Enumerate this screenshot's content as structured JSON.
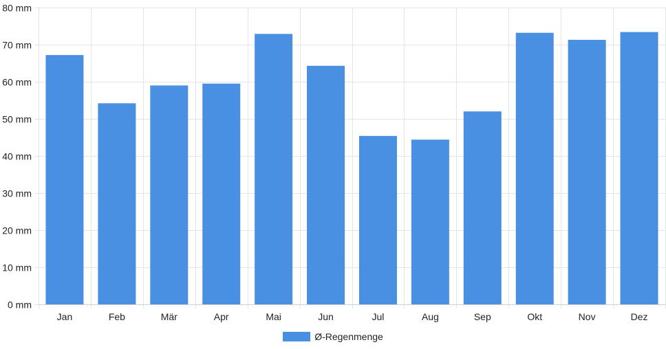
{
  "chart_data": {
    "type": "bar",
    "categories": [
      "Jan",
      "Feb",
      "Mär",
      "Apr",
      "Mai",
      "Jun",
      "Jul",
      "Aug",
      "Sep",
      "Okt",
      "Nov",
      "Dez"
    ],
    "series": [
      {
        "name": "Ø-Regenmenge",
        "values": [
          67.2,
          54.2,
          59.0,
          59.5,
          72.9,
          64.3,
          45.4,
          44.4,
          52.0,
          73.2,
          71.3,
          73.4
        ],
        "color": "#4a90e2"
      }
    ],
    "title": "",
    "xlabel": "",
    "ylabel": "",
    "ylim": [
      0,
      80
    ],
    "y_ticks": [
      "0 mm",
      "10 mm",
      "20 mm",
      "30 mm",
      "40 mm",
      "50 mm",
      "60 mm",
      "70 mm",
      "80 mm"
    ],
    "grid": true,
    "legend_position": "bottom"
  },
  "legend": {
    "label": "Ø-Regenmenge"
  }
}
